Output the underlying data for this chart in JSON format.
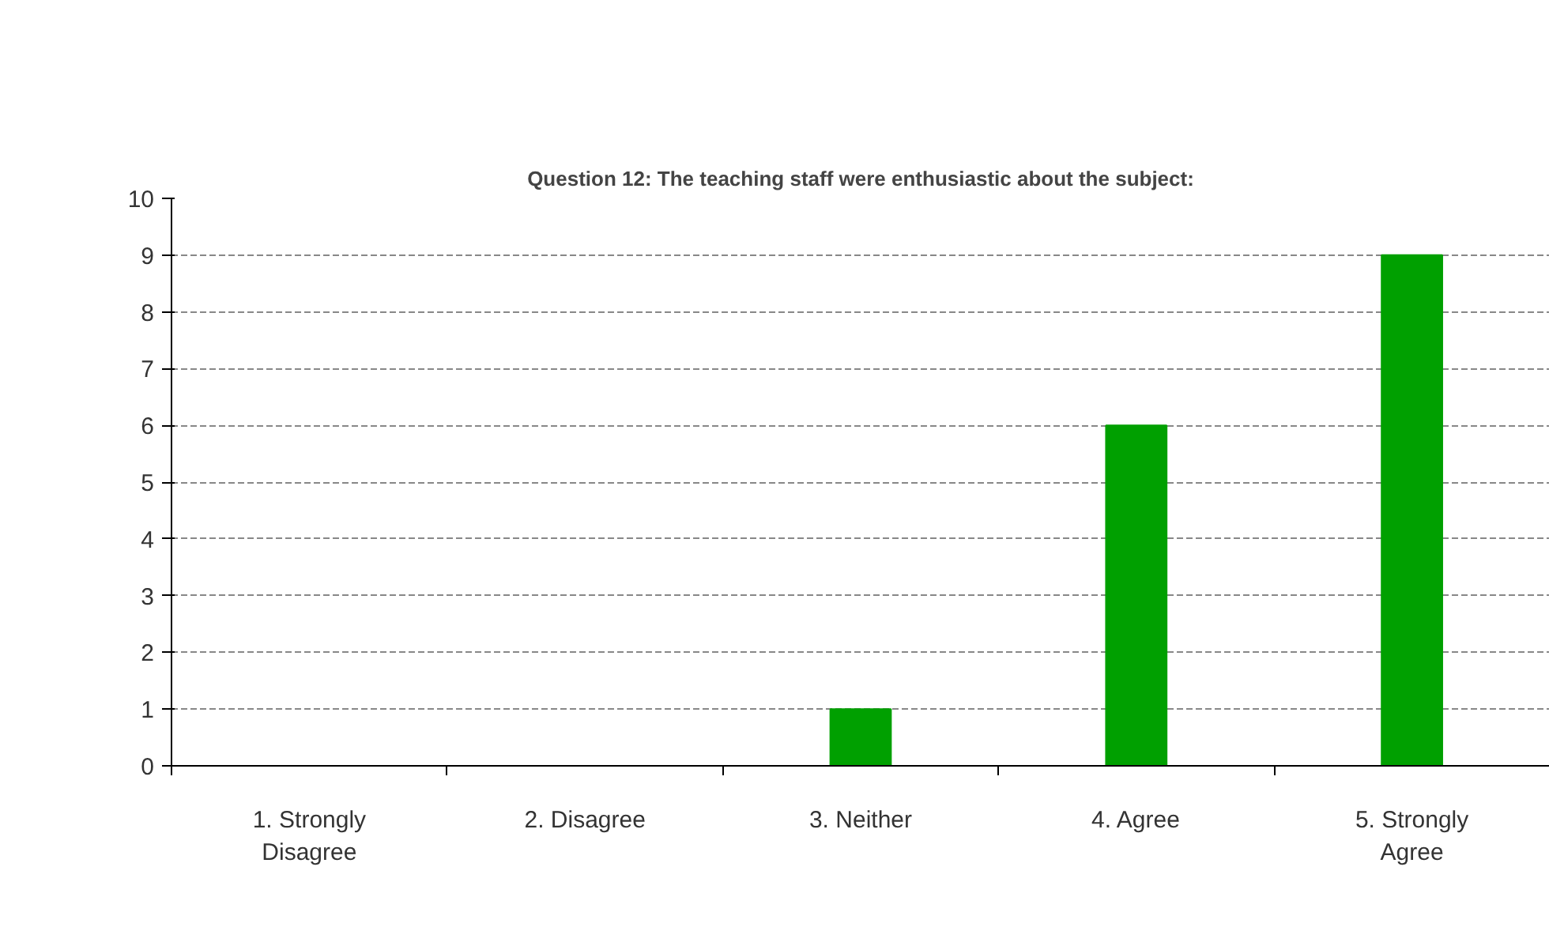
{
  "chart_data": {
    "type": "bar",
    "title": "Question 12: The teaching staff were enthusiastic about the subject:",
    "categories": [
      "1. Strongly\nDisagree",
      "2. Disagree",
      "3. Neither",
      "4. Agree",
      "5. Strongly\nAgree"
    ],
    "values": [
      0,
      0,
      1,
      6,
      9
    ],
    "color": "#00a000",
    "ylim": [
      0,
      10
    ],
    "yticks": [
      0,
      1,
      2,
      3,
      4,
      5,
      6,
      7,
      8,
      9,
      10
    ],
    "grid": "y"
  }
}
